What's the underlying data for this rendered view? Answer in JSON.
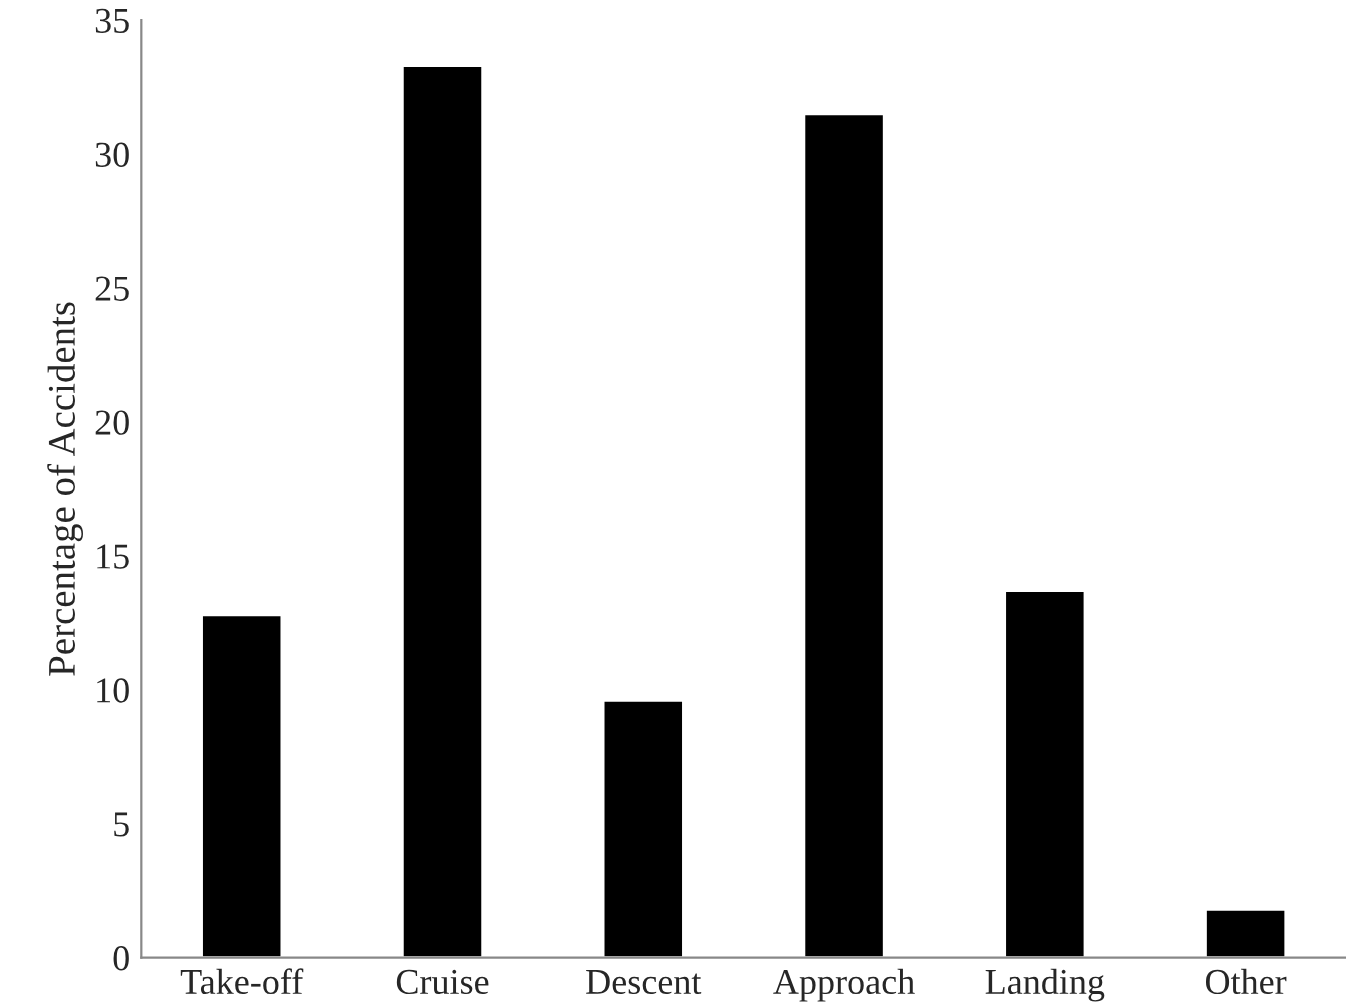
{
  "chart_data": {
    "type": "bar",
    "ylabel": "Percentage of Accidents",
    "categories": [
      "Take-off",
      "Cruise",
      "Descent",
      "Approach",
      "Landing",
      "Other"
    ],
    "values": [
      12.8,
      33.3,
      9.6,
      31.5,
      13.7,
      1.8
    ],
    "color": "#000000",
    "ylim": [
      0,
      35
    ],
    "yticks": [
      0,
      5,
      10,
      15,
      20,
      25,
      30,
      35
    ],
    "grid": false,
    "legend": false
  }
}
